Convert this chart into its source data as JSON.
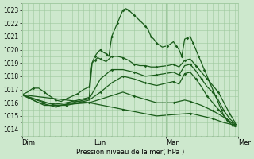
{
  "bg_color": "#cde8cd",
  "grid_color": "#9ec89e",
  "line_color": "#1a5c1a",
  "marker_color": "#1a5c1a",
  "xlabel": "Pression niveau de la mer( hPa )",
  "ylim": [
    1013.5,
    1023.5
  ],
  "yticks": [
    1014,
    1015,
    1016,
    1017,
    1018,
    1019,
    1020,
    1021,
    1022,
    1023
  ],
  "day_labels": [
    "Dim",
    "Lun",
    "Mar",
    "Mer"
  ],
  "day_positions": [
    0,
    0.333,
    0.667,
    1.0
  ],
  "total_steps": 77,
  "series": [
    {
      "points": [
        [
          0,
          1016.6
        ],
        [
          2,
          1016.8
        ],
        [
          4,
          1017.1
        ],
        [
          6,
          1017.1
        ],
        [
          8,
          1016.8
        ],
        [
          10,
          1016.5
        ],
        [
          12,
          1016.2
        ],
        [
          14,
          1016.1
        ],
        [
          16,
          1016.3
        ],
        [
          18,
          1016.5
        ],
        [
          20,
          1016.7
        ],
        [
          22,
          1017.0
        ],
        [
          24,
          1017.2
        ],
        [
          25,
          1019.0
        ],
        [
          26,
          1019.5
        ],
        [
          27,
          1019.8
        ],
        [
          28,
          1020.0
        ],
        [
          29,
          1019.8
        ],
        [
          30,
          1019.7
        ],
        [
          31,
          1019.5
        ],
        [
          32,
          1021.0
        ],
        [
          33,
          1021.5
        ],
        [
          34,
          1022.0
        ],
        [
          35,
          1022.5
        ],
        [
          36,
          1023.0
        ],
        [
          37,
          1023.1
        ],
        [
          38,
          1023.0
        ],
        [
          39,
          1022.8
        ],
        [
          40,
          1022.6
        ],
        [
          41,
          1022.4
        ],
        [
          42,
          1022.2
        ],
        [
          43,
          1022.0
        ],
        [
          44,
          1021.8
        ],
        [
          45,
          1021.5
        ],
        [
          46,
          1021.0
        ],
        [
          47,
          1020.8
        ],
        [
          48,
          1020.5
        ],
        [
          50,
          1020.2
        ],
        [
          52,
          1020.3
        ],
        [
          54,
          1020.6
        ],
        [
          55,
          1020.3
        ],
        [
          56,
          1020.0
        ],
        [
          57,
          1019.5
        ],
        [
          58,
          1020.8
        ],
        [
          59,
          1020.9
        ],
        [
          60,
          1021.0
        ],
        [
          61,
          1020.5
        ],
        [
          62,
          1020.0
        ],
        [
          63,
          1019.5
        ],
        [
          64,
          1019.0
        ],
        [
          65,
          1018.5
        ],
        [
          66,
          1018.0
        ],
        [
          67,
          1017.5
        ],
        [
          68,
          1017.0
        ],
        [
          69,
          1016.5
        ],
        [
          70,
          1016.0
        ],
        [
          71,
          1015.5
        ],
        [
          72,
          1015.0
        ],
        [
          73,
          1014.7
        ],
        [
          74,
          1014.5
        ],
        [
          75,
          1014.3
        ],
        [
          76,
          1014.2
        ]
      ]
    },
    {
      "points": [
        [
          0,
          1016.6
        ],
        [
          4,
          1016.3
        ],
        [
          8,
          1016.0
        ],
        [
          12,
          1015.9
        ],
        [
          16,
          1016.0
        ],
        [
          20,
          1016.2
        ],
        [
          24,
          1016.4
        ],
        [
          25,
          1019.0
        ],
        [
          26,
          1019.2
        ],
        [
          27,
          1019.4
        ],
        [
          28,
          1019.3
        ],
        [
          30,
          1019.1
        ],
        [
          32,
          1019.5
        ],
        [
          34,
          1019.5
        ],
        [
          36,
          1019.4
        ],
        [
          38,
          1019.2
        ],
        [
          40,
          1018.9
        ],
        [
          42,
          1018.8
        ],
        [
          44,
          1018.8
        ],
        [
          46,
          1018.7
        ],
        [
          48,
          1018.7
        ],
        [
          52,
          1018.8
        ],
        [
          54,
          1018.9
        ],
        [
          56,
          1018.7
        ],
        [
          58,
          1019.2
        ],
        [
          60,
          1019.3
        ],
        [
          62,
          1018.8
        ],
        [
          64,
          1018.3
        ],
        [
          66,
          1017.8
        ],
        [
          68,
          1017.3
        ],
        [
          70,
          1016.8
        ],
        [
          72,
          1016.0
        ],
        [
          74,
          1015.2
        ],
        [
          76,
          1014.5
        ]
      ]
    },
    {
      "points": [
        [
          0,
          1016.6
        ],
        [
          6,
          1016.0
        ],
        [
          12,
          1015.7
        ],
        [
          18,
          1016.0
        ],
        [
          24,
          1016.3
        ],
        [
          28,
          1017.8
        ],
        [
          32,
          1018.5
        ],
        [
          36,
          1018.5
        ],
        [
          40,
          1018.3
        ],
        [
          44,
          1018.0
        ],
        [
          48,
          1018.1
        ],
        [
          54,
          1018.3
        ],
        [
          56,
          1018.1
        ],
        [
          58,
          1018.8
        ],
        [
          60,
          1018.9
        ],
        [
          62,
          1018.4
        ],
        [
          64,
          1017.8
        ],
        [
          66,
          1017.2
        ],
        [
          68,
          1016.8
        ],
        [
          70,
          1016.2
        ],
        [
          72,
          1015.4
        ],
        [
          74,
          1014.8
        ],
        [
          76,
          1014.4
        ]
      ]
    },
    {
      "points": [
        [
          0,
          1016.6
        ],
        [
          8,
          1015.8
        ],
        [
          16,
          1015.8
        ],
        [
          24,
          1016.2
        ],
        [
          28,
          1016.8
        ],
        [
          32,
          1017.5
        ],
        [
          36,
          1018.0
        ],
        [
          40,
          1017.8
        ],
        [
          44,
          1017.5
        ],
        [
          48,
          1017.3
        ],
        [
          54,
          1017.6
        ],
        [
          56,
          1017.4
        ],
        [
          58,
          1018.2
        ],
        [
          60,
          1018.3
        ],
        [
          62,
          1017.8
        ],
        [
          64,
          1017.2
        ],
        [
          66,
          1016.5
        ],
        [
          68,
          1016.0
        ],
        [
          70,
          1015.5
        ],
        [
          72,
          1015.0
        ],
        [
          74,
          1014.6
        ],
        [
          76,
          1014.3
        ]
      ]
    },
    {
      "points": [
        [
          0,
          1016.6
        ],
        [
          12,
          1015.8
        ],
        [
          24,
          1016.0
        ],
        [
          36,
          1016.8
        ],
        [
          40,
          1016.5
        ],
        [
          48,
          1016.0
        ],
        [
          54,
          1016.0
        ],
        [
          58,
          1016.2
        ],
        [
          60,
          1016.1
        ],
        [
          64,
          1015.8
        ],
        [
          68,
          1015.4
        ],
        [
          72,
          1014.9
        ],
        [
          76,
          1014.3
        ]
      ]
    },
    {
      "points": [
        [
          0,
          1016.6
        ],
        [
          24,
          1016.0
        ],
        [
          36,
          1015.5
        ],
        [
          48,
          1015.0
        ],
        [
          60,
          1015.2
        ],
        [
          64,
          1015.0
        ],
        [
          68,
          1014.8
        ],
        [
          72,
          1014.5
        ],
        [
          76,
          1014.3
        ]
      ]
    }
  ]
}
